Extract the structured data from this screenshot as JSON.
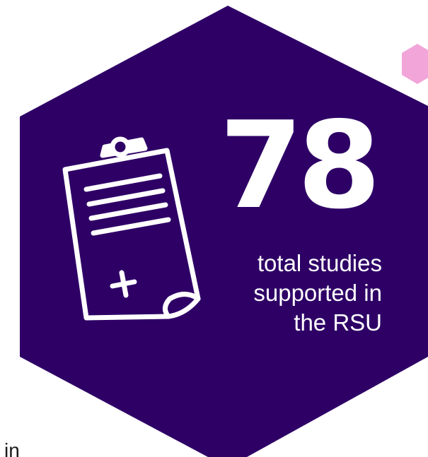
{
  "stat": {
    "number": "78",
    "caption_lines": [
      "total studies",
      "supported in",
      "the RSU"
    ]
  },
  "footer_fragment": "in",
  "colors": {
    "hexagon": "#2e0066",
    "accent_hexagon": "#f2a5d8",
    "text": "#ffffff"
  },
  "icons": {
    "main": "clipboard-medical-icon",
    "accent": "hexagon-shape"
  }
}
